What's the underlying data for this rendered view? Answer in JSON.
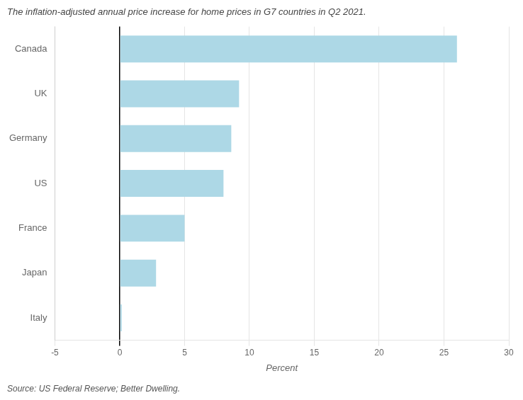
{
  "chart_data": {
    "type": "bar",
    "orientation": "horizontal",
    "title": "The inflation-adjusted annual price increase for home prices in G7 countries in Q2 2021.",
    "xlabel": "Percent",
    "annotations": [
      "Source: US Federal Reserve; Better Dwelling."
    ],
    "categories": [
      "Canada",
      "UK",
      "Germany",
      "US",
      "France",
      "Japan",
      "Italy"
    ],
    "values": [
      26.0,
      9.2,
      8.6,
      8.0,
      5.0,
      2.8,
      0.15
    ],
    "color": "#add8e6",
    "xlim": [
      -5,
      30
    ],
    "xticks": [
      -5,
      0,
      5,
      10,
      15,
      20,
      25,
      30
    ],
    "grid": true,
    "legend": false
  }
}
